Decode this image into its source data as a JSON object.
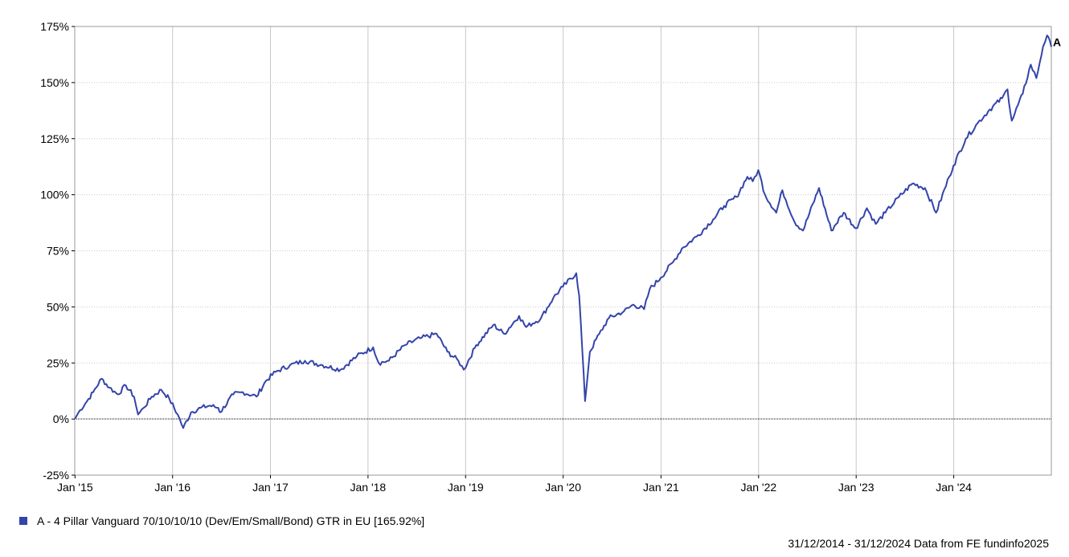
{
  "chart_data": {
    "type": "line",
    "title": "",
    "xlabel": "",
    "ylabel": "",
    "ylim": [
      -25,
      175
    ],
    "y_ticks": [
      "175%",
      "150%",
      "125%",
      "100%",
      "75%",
      "50%",
      "25%",
      "0%",
      "-25%"
    ],
    "y_tick_values": [
      175,
      150,
      125,
      100,
      75,
      50,
      25,
      0,
      -25
    ],
    "x_ticks": [
      "Jan '15",
      "Jan '16",
      "Jan '17",
      "Jan '18",
      "Jan '19",
      "Jan '20",
      "Jan '21",
      "Jan '22",
      "Jan '23",
      "Jan '24"
    ],
    "x_range": [
      "2014-12-31",
      "2024-12-31"
    ],
    "grid": true,
    "legend_position": "bottom-left",
    "colors": {
      "series": "#3344aa",
      "grid": "#c8c8c8",
      "zero_line": "#000000"
    },
    "series": [
      {
        "name": "A - 4 Pillar Vanguard 70/10/10/10 (Dev/Em/Small/Bond) GTR in EU [165.92%]",
        "end_label": "A",
        "points": [
          [
            "2014-12-31",
            0
          ],
          [
            "2015-01-20",
            4
          ],
          [
            "2015-02-15",
            8
          ],
          [
            "2015-03-10",
            12
          ],
          [
            "2015-04-10",
            18
          ],
          [
            "2015-05-10",
            14
          ],
          [
            "2015-06-10",
            11
          ],
          [
            "2015-07-10",
            15
          ],
          [
            "2015-08-10",
            10
          ],
          [
            "2015-08-25",
            2
          ],
          [
            "2015-09-15",
            5
          ],
          [
            "2015-10-15",
            10
          ],
          [
            "2015-11-20",
            13
          ],
          [
            "2015-12-20",
            9
          ],
          [
            "2016-01-20",
            2
          ],
          [
            "2016-02-10",
            -4
          ],
          [
            "2016-03-10",
            3
          ],
          [
            "2016-04-15",
            5
          ],
          [
            "2016-05-20",
            6
          ],
          [
            "2016-06-20",
            5
          ],
          [
            "2016-06-27",
            3
          ],
          [
            "2016-08-15",
            11
          ],
          [
            "2016-09-20",
            12
          ],
          [
            "2016-11-10",
            10
          ],
          [
            "2016-12-15",
            17
          ],
          [
            "2017-01-20",
            21
          ],
          [
            "2017-03-15",
            24
          ],
          [
            "2017-05-10",
            26
          ],
          [
            "2017-07-15",
            24
          ],
          [
            "2017-09-20",
            22
          ],
          [
            "2017-11-20",
            28
          ],
          [
            "2018-01-20",
            32
          ],
          [
            "2018-02-10",
            25
          ],
          [
            "2018-03-20",
            26
          ],
          [
            "2018-05-20",
            33
          ],
          [
            "2018-07-15",
            36
          ],
          [
            "2018-09-15",
            38
          ],
          [
            "2018-10-25",
            30
          ],
          [
            "2018-12-05",
            26
          ],
          [
            "2018-12-25",
            22
          ],
          [
            "2019-02-10",
            33
          ],
          [
            "2019-04-15",
            42
          ],
          [
            "2019-05-25",
            38
          ],
          [
            "2019-07-20",
            46
          ],
          [
            "2019-08-15",
            41
          ],
          [
            "2019-10-10",
            45
          ],
          [
            "2019-11-25",
            54
          ],
          [
            "2019-12-31",
            59
          ],
          [
            "2020-02-19",
            65
          ],
          [
            "2020-03-01",
            55
          ],
          [
            "2020-03-23",
            8
          ],
          [
            "2020-04-10",
            30
          ],
          [
            "2020-05-15",
            38
          ],
          [
            "2020-06-20",
            45
          ],
          [
            "2020-08-15",
            48
          ],
          [
            "2020-09-20",
            51
          ],
          [
            "2020-10-30",
            49
          ],
          [
            "2020-11-20",
            58
          ],
          [
            "2020-12-31",
            63
          ],
          [
            "2021-02-15",
            70
          ],
          [
            "2021-03-20",
            76
          ],
          [
            "2021-05-20",
            82
          ],
          [
            "2021-07-15",
            89
          ],
          [
            "2021-08-25",
            95
          ],
          [
            "2021-10-10",
            99
          ],
          [
            "2021-11-20",
            108
          ],
          [
            "2021-12-10",
            106
          ],
          [
            "2021-12-31",
            111
          ],
          [
            "2022-01-25",
            100
          ],
          [
            "2022-03-08",
            92
          ],
          [
            "2022-03-31",
            102
          ],
          [
            "2022-05-15",
            88
          ],
          [
            "2022-06-16",
            84
          ],
          [
            "2022-08-15",
            103
          ],
          [
            "2022-09-30",
            84
          ],
          [
            "2022-11-15",
            92
          ],
          [
            "2022-12-31",
            85
          ],
          [
            "2023-02-10",
            94
          ],
          [
            "2023-03-15",
            87
          ],
          [
            "2023-04-20",
            92
          ],
          [
            "2023-06-10",
            99
          ],
          [
            "2023-07-31",
            105
          ],
          [
            "2023-09-15",
            103
          ],
          [
            "2023-10-27",
            92
          ],
          [
            "2023-12-15",
            108
          ],
          [
            "2023-12-31",
            113
          ],
          [
            "2024-02-15",
            125
          ],
          [
            "2024-03-31",
            132
          ],
          [
            "2024-05-15",
            138
          ],
          [
            "2024-06-30",
            143
          ],
          [
            "2024-07-20",
            147
          ],
          [
            "2024-08-05",
            133
          ],
          [
            "2024-09-15",
            145
          ],
          [
            "2024-10-15",
            158
          ],
          [
            "2024-11-05",
            152
          ],
          [
            "2024-11-30",
            166
          ],
          [
            "2024-12-15",
            171
          ],
          [
            "2024-12-31",
            165.92
          ]
        ]
      }
    ]
  },
  "footer": "31/12/2014 - 31/12/2024 Data from FE fundinfo2025"
}
